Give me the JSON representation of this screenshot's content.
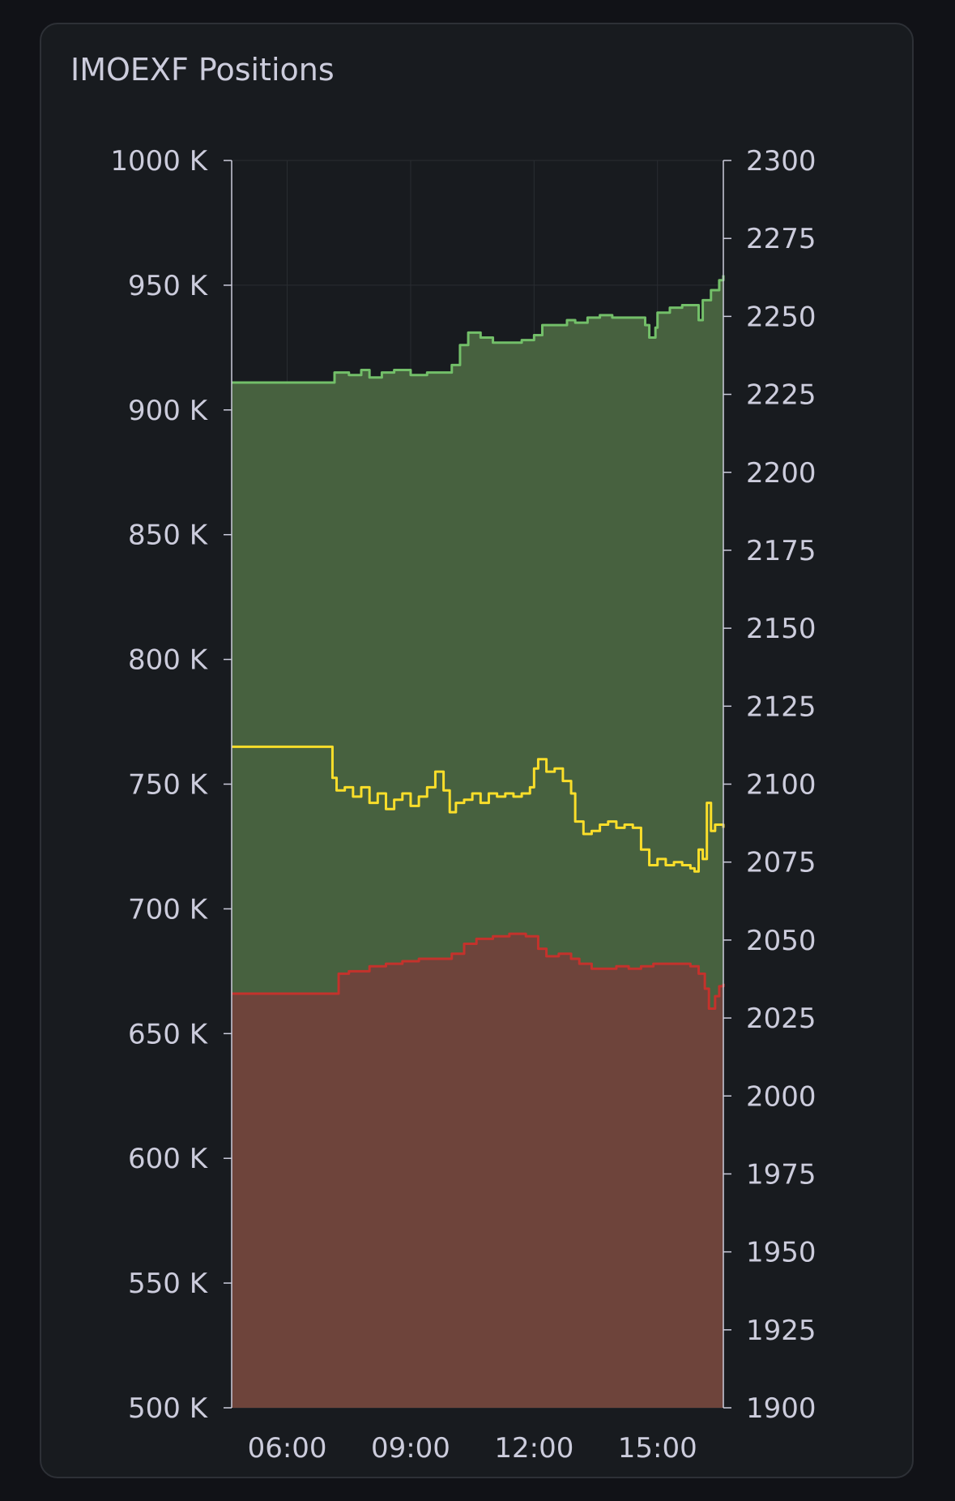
{
  "panel": {
    "title": "IMOEXF Positions"
  },
  "chart_data": {
    "type": "area",
    "title": "IMOEXF Positions",
    "y_left": {
      "range": [
        500000,
        1000000
      ],
      "tick_labels": [
        "500 K",
        "550 K",
        "600 K",
        "650 K",
        "700 K",
        "750 K",
        "800 K",
        "850 K",
        "900 K",
        "950 K",
        "1000 K"
      ],
      "tick_values": [
        500000,
        550000,
        600000,
        650000,
        700000,
        750000,
        800000,
        850000,
        900000,
        950000,
        1000000
      ]
    },
    "y_right": {
      "range": [
        1900,
        2300
      ],
      "tick_labels": [
        "1900",
        "1925",
        "1950",
        "1975",
        "2000",
        "2025",
        "2050",
        "2075",
        "2100",
        "2125",
        "2150",
        "2175",
        "2200",
        "2225",
        "2250",
        "2275",
        "2300"
      ],
      "tick_values": [
        1900,
        1925,
        1950,
        1975,
        2000,
        2025,
        2050,
        2075,
        2100,
        2125,
        2150,
        2175,
        2200,
        2225,
        2250,
        2275,
        2300
      ]
    },
    "x": {
      "range": [
        4.65,
        16.6
      ],
      "tick_labels": [
        "06:00",
        "09:00",
        "12:00",
        "15:00"
      ],
      "tick_values": [
        6,
        9,
        12,
        15
      ]
    },
    "grid": true,
    "legend": "none",
    "series": [
      {
        "axis": "left",
        "fill": true,
        "color": "#73bf69",
        "fill_color": "#47613f",
        "points": [
          [
            4.65,
            911000
          ],
          [
            7.1,
            911000
          ],
          [
            7.15,
            915000
          ],
          [
            7.5,
            914000
          ],
          [
            7.8,
            916000
          ],
          [
            8.0,
            913000
          ],
          [
            8.3,
            915000
          ],
          [
            8.6,
            916000
          ],
          [
            9.0,
            914000
          ],
          [
            9.4,
            915000
          ],
          [
            9.8,
            915000
          ],
          [
            10.0,
            918000
          ],
          [
            10.2,
            926000
          ],
          [
            10.4,
            931000
          ],
          [
            10.7,
            929000
          ],
          [
            11.0,
            927000
          ],
          [
            11.4,
            927000
          ],
          [
            11.7,
            928000
          ],
          [
            12.0,
            930000
          ],
          [
            12.2,
            934000
          ],
          [
            12.5,
            934000
          ],
          [
            12.8,
            936000
          ],
          [
            13.0,
            935000
          ],
          [
            13.3,
            937000
          ],
          [
            13.6,
            938000
          ],
          [
            13.9,
            937000
          ],
          [
            14.2,
            937000
          ],
          [
            14.5,
            937000
          ],
          [
            14.7,
            934000
          ],
          [
            14.8,
            929000
          ],
          [
            14.95,
            933000
          ],
          [
            15.0,
            939000
          ],
          [
            15.3,
            941000
          ],
          [
            15.6,
            942000
          ],
          [
            15.9,
            942000
          ],
          [
            16.0,
            936000
          ],
          [
            16.1,
            944000
          ],
          [
            16.3,
            948000
          ],
          [
            16.5,
            952000
          ],
          [
            16.6,
            954000
          ]
        ]
      },
      {
        "axis": "left",
        "fill": true,
        "color": "#c4322c",
        "fill_color": "#6e443b",
        "points": [
          [
            4.65,
            666000
          ],
          [
            7.1,
            666000
          ],
          [
            7.25,
            674000
          ],
          [
            7.5,
            675000
          ],
          [
            7.8,
            675000
          ],
          [
            8.0,
            677000
          ],
          [
            8.4,
            678000
          ],
          [
            8.8,
            679000
          ],
          [
            9.2,
            680000
          ],
          [
            9.6,
            680000
          ],
          [
            10.0,
            682000
          ],
          [
            10.3,
            686000
          ],
          [
            10.6,
            688000
          ],
          [
            11.0,
            689000
          ],
          [
            11.4,
            690000
          ],
          [
            11.8,
            689000
          ],
          [
            12.1,
            684000
          ],
          [
            12.3,
            681000
          ],
          [
            12.6,
            682000
          ],
          [
            12.9,
            680000
          ],
          [
            13.1,
            678000
          ],
          [
            13.4,
            676000
          ],
          [
            13.7,
            676000
          ],
          [
            14.0,
            677000
          ],
          [
            14.3,
            676000
          ],
          [
            14.6,
            677000
          ],
          [
            14.9,
            678000
          ],
          [
            15.2,
            678000
          ],
          [
            15.5,
            678000
          ],
          [
            15.8,
            677000
          ],
          [
            16.0,
            674000
          ],
          [
            16.15,
            668000
          ],
          [
            16.25,
            660000
          ],
          [
            16.4,
            665000
          ],
          [
            16.5,
            669000
          ],
          [
            16.6,
            670000
          ]
        ]
      },
      {
        "axis": "right",
        "fill": false,
        "color": "#fade2a",
        "points": [
          [
            4.65,
            2112
          ],
          [
            7.05,
            2112
          ],
          [
            7.1,
            2102
          ],
          [
            7.2,
            2098
          ],
          [
            7.4,
            2099
          ],
          [
            7.6,
            2096
          ],
          [
            7.8,
            2099
          ],
          [
            8.0,
            2094
          ],
          [
            8.2,
            2097
          ],
          [
            8.4,
            2092
          ],
          [
            8.6,
            2095
          ],
          [
            8.8,
            2097
          ],
          [
            9.0,
            2093
          ],
          [
            9.2,
            2096
          ],
          [
            9.4,
            2099
          ],
          [
            9.6,
            2104
          ],
          [
            9.8,
            2098
          ],
          [
            9.95,
            2091
          ],
          [
            10.1,
            2094
          ],
          [
            10.3,
            2095
          ],
          [
            10.5,
            2097
          ],
          [
            10.7,
            2094
          ],
          [
            10.9,
            2097
          ],
          [
            11.1,
            2096
          ],
          [
            11.3,
            2097
          ],
          [
            11.5,
            2096
          ],
          [
            11.7,
            2097
          ],
          [
            11.9,
            2099
          ],
          [
            12.0,
            2105
          ],
          [
            12.1,
            2108
          ],
          [
            12.3,
            2104
          ],
          [
            12.5,
            2105
          ],
          [
            12.7,
            2101
          ],
          [
            12.9,
            2097
          ],
          [
            13.0,
            2088
          ],
          [
            13.2,
            2084
          ],
          [
            13.4,
            2085
          ],
          [
            13.6,
            2087
          ],
          [
            13.8,
            2088
          ],
          [
            14.0,
            2086
          ],
          [
            14.2,
            2087
          ],
          [
            14.4,
            2086
          ],
          [
            14.6,
            2079
          ],
          [
            14.8,
            2074
          ],
          [
            15.0,
            2076
          ],
          [
            15.2,
            2074
          ],
          [
            15.4,
            2075
          ],
          [
            15.6,
            2074
          ],
          [
            15.8,
            2073
          ],
          [
            15.9,
            2072
          ],
          [
            16.0,
            2079
          ],
          [
            16.1,
            2076
          ],
          [
            16.2,
            2094
          ],
          [
            16.3,
            2085
          ],
          [
            16.4,
            2087
          ],
          [
            16.6,
            2086
          ]
        ]
      }
    ]
  }
}
